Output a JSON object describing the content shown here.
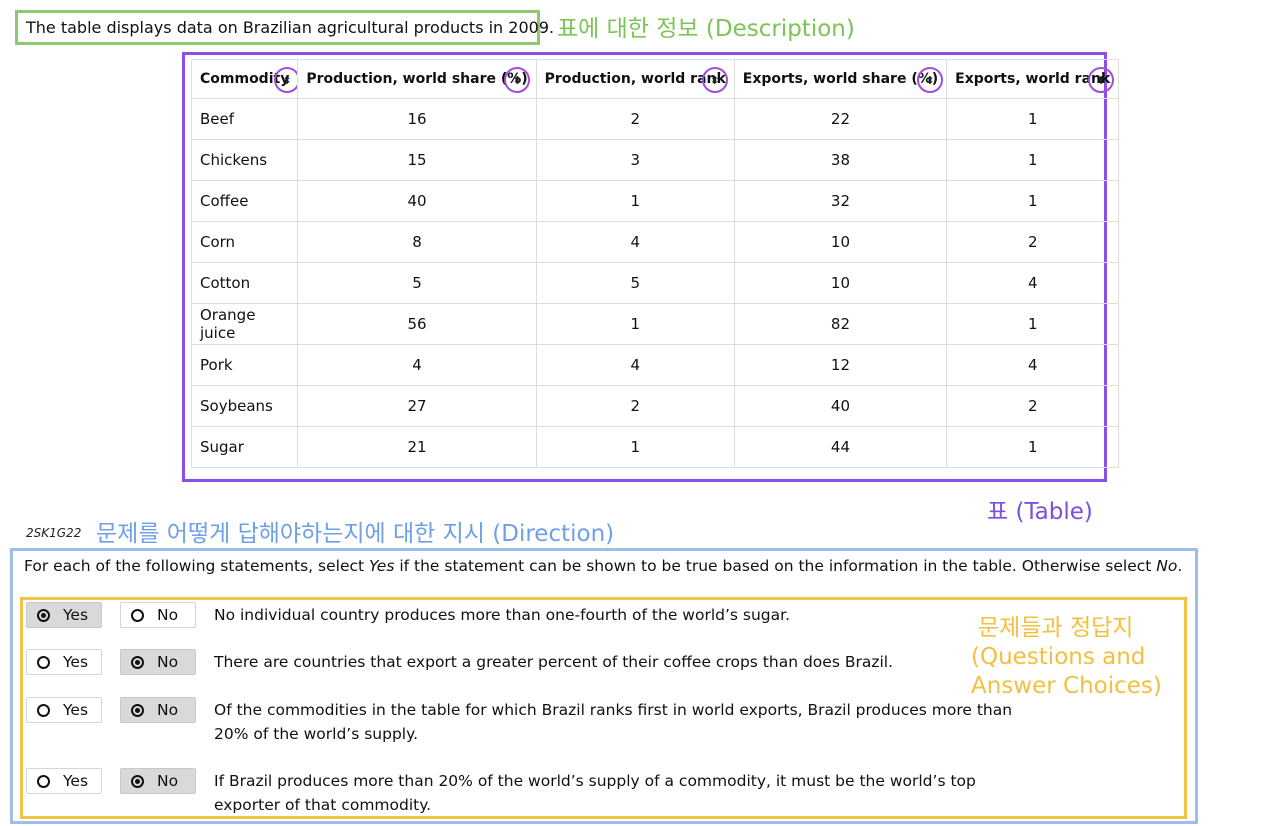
{
  "description": "The table displays data on Brazilian agricultural products in 2009.",
  "annotations": {
    "description": "표에 대한 정보 (Description)",
    "table": "표 (Table)",
    "direction": "문제를 어떻게 답해야하는지에 대한 지시 (Direction)",
    "questions_line1": "문제들과 정답지",
    "questions_line2": "(Questions and",
    "questions_line3": "Answer Choices)"
  },
  "table": {
    "headers": [
      "Commodity",
      "Production, world share (%)",
      "Production, world rank",
      "Exports, world share (%)",
      "Exports, world rank"
    ],
    "rows": [
      [
        "Beef",
        "16",
        "2",
        "22",
        "1"
      ],
      [
        "Chickens",
        "15",
        "3",
        "38",
        "1"
      ],
      [
        "Coffee",
        "40",
        "1",
        "32",
        "1"
      ],
      [
        "Corn",
        "8",
        "4",
        "10",
        "2"
      ],
      [
        "Cotton",
        "5",
        "5",
        "10",
        "4"
      ],
      [
        "Orange juice",
        "56",
        "1",
        "82",
        "1"
      ],
      [
        "Pork",
        "4",
        "4",
        "12",
        "4"
      ],
      [
        "Soybeans",
        "27",
        "2",
        "40",
        "2"
      ],
      [
        "Sugar",
        "21",
        "1",
        "44",
        "1"
      ]
    ]
  },
  "question_code": "2SK1G22",
  "direction": {
    "before_yes": "For each of the following statements, select ",
    "yes": "Yes",
    "middle": " if the statement can be shown to be true based on the information in the table. Otherwise select ",
    "no": "No",
    "end": "."
  },
  "questions": [
    {
      "yes_label": "Yes",
      "no_label": "No",
      "selected": "yes",
      "text": "No individual country produces more than one-fourth of the world’s sugar."
    },
    {
      "yes_label": "Yes",
      "no_label": "No",
      "selected": "no",
      "text": "There are countries that export a greater percent of their coffee crops than does Brazil."
    },
    {
      "yes_label": "Yes",
      "no_label": "No",
      "selected": "no",
      "text": "Of the commodities in the table for which Brazil ranks first in world exports, Brazil produces more than 20% of the world’s supply."
    },
    {
      "yes_label": "Yes",
      "no_label": "No",
      "selected": "no",
      "text": "If Brazil produces more than 20% of the world’s supply of a commodity, it must be the world’s top exporter of that commodity."
    }
  ],
  "colors": {
    "description_box": "#8fc870",
    "table_box": "#8a4fe8",
    "direction_box": "#9ebcec",
    "questions_box": "#f2c344"
  }
}
